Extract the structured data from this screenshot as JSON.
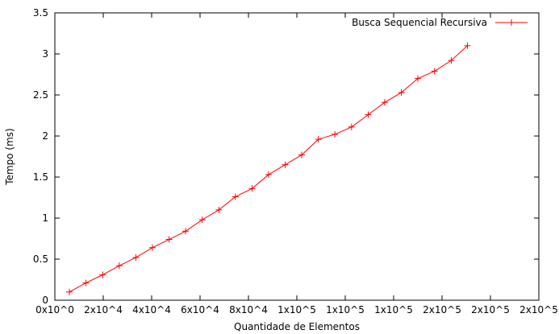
{
  "chart_data": {
    "type": "line",
    "title": "",
    "xlabel": "Quantidade de Elementos",
    "ylabel": "Tempo (ms)",
    "xlim": [
      0,
      200000
    ],
    "ylim": [
      0,
      3.5
    ],
    "grid": false,
    "legend_position": "top-right",
    "x_ticks": [
      {
        "value": 0,
        "label": "0x10^0"
      },
      {
        "value": 20000,
        "label": "2x10^4"
      },
      {
        "value": 40000,
        "label": "4x10^4"
      },
      {
        "value": 60000,
        "label": "6x10^4"
      },
      {
        "value": 80000,
        "label": "8x10^4"
      },
      {
        "value": 100000,
        "label": "1x10^5"
      },
      {
        "value": 120000,
        "label": "1x10^5"
      },
      {
        "value": 140000,
        "label": "1x10^5"
      },
      {
        "value": 160000,
        "label": "2x10^5"
      },
      {
        "value": 180000,
        "label": "2x10^5"
      },
      {
        "value": 200000,
        "label": "2x10^5"
      }
    ],
    "y_ticks": [
      {
        "value": 0,
        "label": "0"
      },
      {
        "value": 0.5,
        "label": "0.5"
      },
      {
        "value": 1,
        "label": "1"
      },
      {
        "value": 1.5,
        "label": "1.5"
      },
      {
        "value": 2,
        "label": "2"
      },
      {
        "value": 2.5,
        "label": "2.5"
      },
      {
        "value": 3,
        "label": "3"
      },
      {
        "value": 3.5,
        "label": "3.5"
      }
    ],
    "series": [
      {
        "name": "Busca Sequencial Recursiva",
        "color": "#ff0000",
        "x": [
          6000,
          12800,
          19800,
          26600,
          33500,
          40300,
          47200,
          54000,
          60900,
          67800,
          74600,
          81500,
          88300,
          95200,
          102000,
          108900,
          115700,
          122600,
          129500,
          136300,
          143200,
          150000,
          156900,
          163800,
          170500
        ],
        "y": [
          0.1,
          0.21,
          0.31,
          0.42,
          0.52,
          0.64,
          0.74,
          0.84,
          0.98,
          1.1,
          1.26,
          1.36,
          1.53,
          1.65,
          1.77,
          1.96,
          2.02,
          2.11,
          2.26,
          2.41,
          2.53,
          2.7,
          2.79,
          2.92,
          3.1
        ]
      }
    ]
  }
}
